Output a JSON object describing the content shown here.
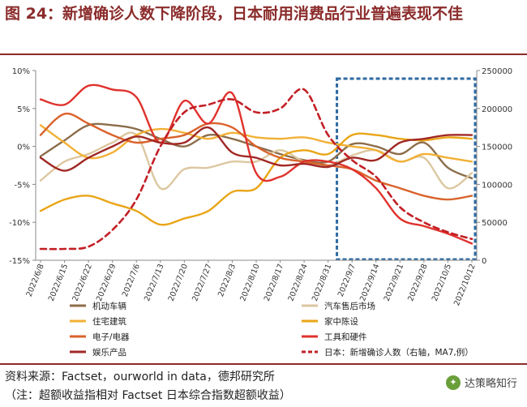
{
  "header": {
    "title": "图 24：新增确诊人数下降阶段，日本耐用消费品行业普遍表现不佳"
  },
  "footer": {
    "source": "资料来源：Factset，ourworld in data，德邦研究所",
    "note": "（注：超额收益指相对 Factset 日本综合指数超额收益）",
    "brand": "达策略知行"
  },
  "colors": {
    "title": "#8b2b2b",
    "highlight_box": "#2e6aa3"
  },
  "chart_data": {
    "type": "line",
    "title": "新增确诊人数下降阶段，日本耐用消费品行业普遍表现不佳",
    "categories": [
      "2022/6/8",
      "2022/6/15",
      "2022/6/22",
      "2022/6/29",
      "2022/7/6",
      "2022/7/13",
      "2022/7/20",
      "2022/7/27",
      "2022/8/3",
      "2022/8/10",
      "2022/8/17",
      "2022/8/24",
      "2022/8/31",
      "2022/9/7",
      "2022/9/14",
      "2022/9/21",
      "2022/9/28",
      "2022/10/5",
      "2022/10/12"
    ],
    "y_left": {
      "min": -15,
      "max": 10,
      "ticks": [
        "10%",
        "5%",
        "0%",
        "-5%",
        "-10%",
        "-15%"
      ]
    },
    "y_right": {
      "min": 0,
      "max": 250000,
      "ticks": [
        "250000",
        "200000",
        "150000",
        "100000",
        "50000",
        "0"
      ]
    },
    "highlight": {
      "from": "2022/9/4",
      "to": "2022/10/12"
    },
    "series": [
      {
        "name": "机动车辆",
        "axis": "left",
        "color": "#8c6d4a",
        "values": [
          -1.3,
          0.8,
          2.8,
          2.8,
          2.3,
          1.0,
          0.0,
          1.5,
          1.0,
          0.0,
          -1.0,
          -1.8,
          -2.0,
          0.3,
          0.0,
          -1.0,
          0.5,
          -2.8,
          -4.2
        ]
      },
      {
        "name": "汽车售后市场",
        "axis": "left",
        "color": "#dcc7a0",
        "values": [
          -4.5,
          -2.0,
          -1.0,
          0.5,
          1.5,
          -5.5,
          -3.0,
          -2.8,
          -2.0,
          -2.0,
          -0.5,
          -2.0,
          -2.5,
          -1.2,
          -0.5,
          -2.0,
          -1.5,
          -5.5,
          -3.5
        ]
      },
      {
        "name": "住宅建筑",
        "axis": "left",
        "color": "#f2b035",
        "values": [
          2.8,
          0.5,
          -1.5,
          -0.8,
          1.5,
          2.3,
          1.8,
          1.0,
          1.8,
          1.2,
          1.0,
          1.2,
          0.5,
          0.0,
          -0.5,
          -2.0,
          -1.0,
          -1.5,
          -2.0
        ]
      },
      {
        "name": "家中陈设",
        "axis": "left",
        "color": "#e9a516",
        "values": [
          -8.5,
          -7.0,
          -6.5,
          -7.5,
          -8.5,
          -10.3,
          -9.5,
          -8.5,
          -6.0,
          -5.5,
          -1.5,
          -0.5,
          -1.0,
          1.5,
          1.5,
          1.0,
          0.8,
          1.2,
          1.0
        ]
      },
      {
        "name": "电子/电器",
        "axis": "left",
        "color": "#d9622a",
        "values": [
          1.5,
          4.3,
          3.0,
          1.5,
          0.5,
          1.0,
          1.5,
          3.0,
          2.5,
          0.0,
          -1.5,
          -2.0,
          -2.5,
          -3.0,
          -4.5,
          -5.5,
          -6.5,
          -7.0,
          -6.5
        ]
      },
      {
        "name": "工具和硬件",
        "axis": "left",
        "color": "#e0322d",
        "values": [
          6.2,
          5.5,
          8.0,
          7.5,
          6.5,
          0.5,
          6.0,
          3.0,
          7.0,
          -3.5,
          -4.0,
          -2.0,
          -2.0,
          -3.0,
          -5.5,
          -9.5,
          -10.5,
          -11.5,
          -12.8
        ]
      },
      {
        "name": "娱乐产品",
        "axis": "left",
        "color": "#a02824",
        "values": [
          -1.5,
          -3.2,
          -1.5,
          0.0,
          1.3,
          0.5,
          0.5,
          2.5,
          -0.8,
          -1.5,
          -2.5,
          -2.3,
          -2.7,
          -1.5,
          -1.8,
          0.5,
          1.0,
          1.5,
          1.5
        ]
      },
      {
        "name": "日本：新增确诊人数（右轴，MA7,例）",
        "axis": "right",
        "color": "#c22026",
        "dashed": true,
        "values": [
          15000,
          15000,
          18000,
          40000,
          80000,
          150000,
          195000,
          205000,
          212000,
          195000,
          200000,
          225000,
          165000,
          132000,
          110000,
          70000,
          50000,
          37000,
          28000
        ]
      }
    ]
  }
}
